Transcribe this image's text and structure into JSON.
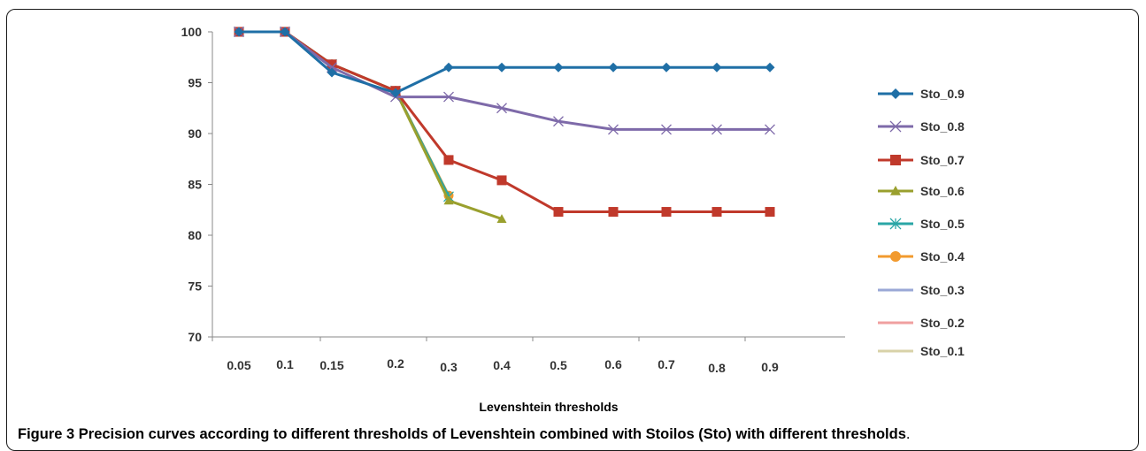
{
  "chart_data": {
    "type": "line",
    "xlabel": "Levenshtein thresholds",
    "ylabel": "",
    "categories": [
      "0.05",
      "0.1",
      "0.15",
      "0.2",
      "0.3",
      "0.4",
      "0.5",
      "0.6",
      "0.7",
      "0.8",
      "0.9"
    ],
    "ylim": [
      70,
      100
    ],
    "yticks": [
      "70",
      "75",
      "80",
      "85",
      "90",
      "95",
      "100"
    ],
    "grid": false,
    "legend_position": "right",
    "series": [
      {
        "name": "Sto_0.9",
        "color": "#1f6fa6",
        "marker": "diamond",
        "values": [
          100,
          100,
          96.0,
          94.0,
          96.5,
          96.5,
          96.5,
          96.5,
          96.5,
          96.5,
          96.5
        ]
      },
      {
        "name": "Sto_0.8",
        "color": "#7e6aa9",
        "marker": "x",
        "values": [
          100,
          100,
          96.5,
          93.6,
          93.6,
          92.5,
          91.2,
          90.4,
          90.4,
          90.4,
          90.4
        ]
      },
      {
        "name": "Sto_0.7",
        "color": "#c0392b",
        "marker": "square",
        "values": [
          100,
          100,
          96.8,
          94.2,
          87.4,
          85.4,
          82.3,
          82.3,
          82.3,
          82.3,
          82.3
        ]
      },
      {
        "name": "Sto_0.6",
        "color": "#9aa02e",
        "marker": "triangle",
        "values": [
          100,
          100,
          96.8,
          94.2,
          83.4,
          81.6,
          null,
          null,
          null,
          null,
          null
        ]
      },
      {
        "name": "Sto_0.5",
        "color": "#2aa6a6",
        "marker": "star",
        "values": [
          100,
          100,
          96.8,
          94.2,
          83.8,
          null,
          null,
          null,
          null,
          null,
          null
        ]
      },
      {
        "name": "Sto_0.4",
        "color": "#f29a2e",
        "marker": "circle",
        "values": [
          100,
          100,
          96.8,
          94.2,
          83.9,
          null,
          null,
          null,
          null,
          null,
          null
        ]
      },
      {
        "name": "Sto_0.3",
        "color": "#9aa8d6",
        "marker": "none",
        "values": [
          100,
          100,
          96.8,
          94.2,
          83.9,
          null,
          null,
          null,
          null,
          null,
          null
        ]
      },
      {
        "name": "Sto_0.2",
        "color": "#f0a0a0",
        "marker": "none",
        "values": [
          100,
          100,
          96.8,
          94.2,
          83.9,
          null,
          null,
          null,
          null,
          null,
          null
        ]
      },
      {
        "name": "Sto_0.1",
        "color": "#d8d2a8",
        "marker": "none",
        "values": [
          100,
          100,
          96.8,
          94.2,
          83.9,
          null,
          null,
          null,
          null,
          null,
          null
        ]
      }
    ]
  },
  "caption": {
    "label": "Figure 3",
    "text": "Precision curves according to different thresholds of Levenshtein combined with Stoilos (Sto) with different thresholds",
    "end": "."
  }
}
